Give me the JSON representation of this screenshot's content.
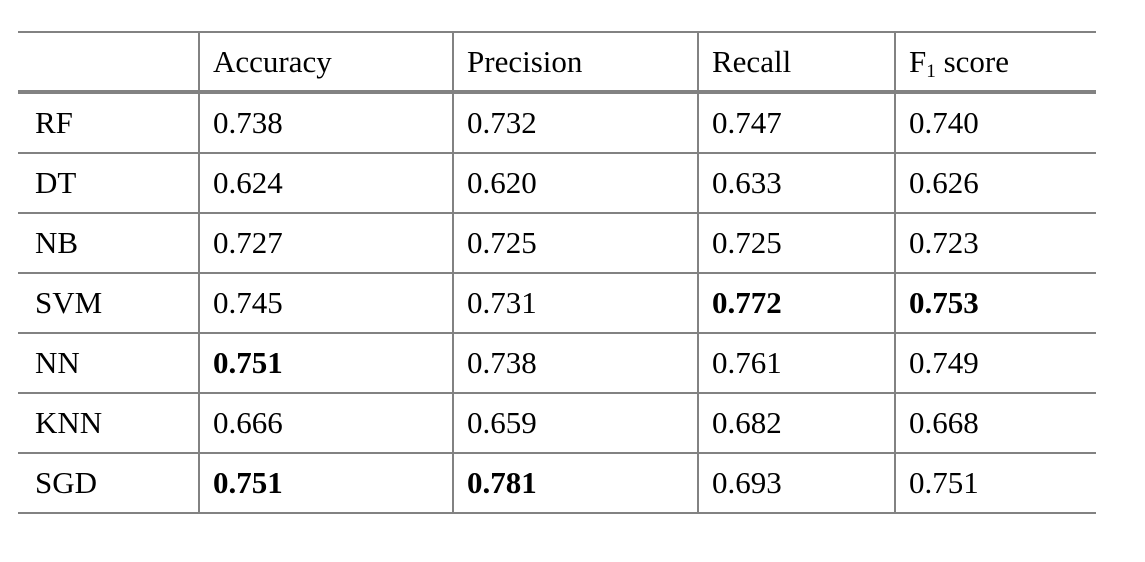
{
  "table": {
    "headers": [
      "",
      "Accuracy",
      "Precision",
      "Recall"
    ],
    "f1_header": {
      "base": "F",
      "sub": "1",
      "rest": " score"
    },
    "rows": [
      {
        "label": "RF",
        "values": [
          "0.738",
          "0.732",
          "0.747",
          "0.740"
        ],
        "bold": [
          false,
          false,
          false,
          false
        ]
      },
      {
        "label": "DT",
        "values": [
          "0.624",
          "0.620",
          "0.633",
          "0.626"
        ],
        "bold": [
          false,
          false,
          false,
          false
        ]
      },
      {
        "label": "NB",
        "values": [
          "0.727",
          "0.725",
          "0.725",
          "0.723"
        ],
        "bold": [
          false,
          false,
          false,
          false
        ]
      },
      {
        "label": "SVM",
        "values": [
          "0.745",
          "0.731",
          "0.772",
          "0.753"
        ],
        "bold": [
          false,
          false,
          true,
          true
        ]
      },
      {
        "label": "NN",
        "values": [
          "0.751",
          "0.738",
          "0.761",
          "0.749"
        ],
        "bold": [
          true,
          false,
          false,
          false
        ]
      },
      {
        "label": "KNN",
        "values": [
          "0.666",
          "0.659",
          "0.682",
          "0.668"
        ],
        "bold": [
          false,
          false,
          false,
          false
        ]
      },
      {
        "label": "SGD",
        "values": [
          "0.751",
          "0.781",
          "0.693",
          "0.751"
        ],
        "bold": [
          true,
          true,
          false,
          false
        ]
      }
    ],
    "border_color": "#828282",
    "text_color": "#000000"
  }
}
